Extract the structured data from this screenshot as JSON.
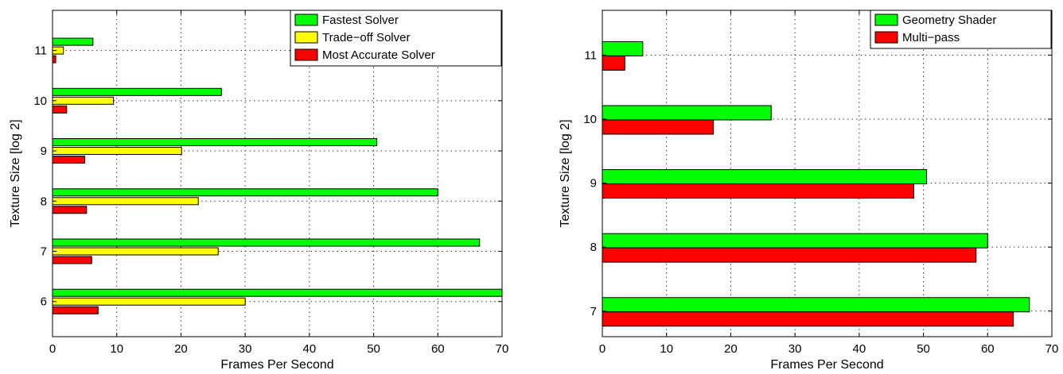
{
  "chart_data": [
    {
      "type": "bar",
      "orientation": "horizontal",
      "categories": [
        "6",
        "7",
        "8",
        "9",
        "10",
        "11"
      ],
      "series": [
        {
          "name": "Fastest Solver",
          "color": "#00ff00",
          "values": [
            70,
            66.5,
            60,
            50.5,
            26.3,
            6.3
          ]
        },
        {
          "name": "Trade−off Solver",
          "color": "#ffff00",
          "values": [
            30,
            25.8,
            22.7,
            20.1,
            9.5,
            1.7
          ]
        },
        {
          "name": "Most Accurate Solver",
          "color": "#ff0000",
          "values": [
            7.1,
            6.1,
            5.3,
            5,
            2.2,
            0.5
          ]
        }
      ],
      "xlabel": "Frames Per Second",
      "ylabel": "Texture Size [log 2]",
      "xlim": [
        0,
        70
      ],
      "ylim": [
        5.3,
        11.8
      ],
      "xticks": [
        0,
        10,
        20,
        30,
        40,
        50,
        60,
        70
      ],
      "yticks": [
        6,
        7,
        8,
        9,
        10,
        11
      ],
      "grid": true,
      "legend": "top-right"
    },
    {
      "type": "bar",
      "orientation": "horizontal",
      "categories": [
        "7",
        "8",
        "9",
        "10",
        "11"
      ],
      "series": [
        {
          "name": "Geometry Shader",
          "color": "#00ff00",
          "values": [
            66.5,
            60,
            50.5,
            26.3,
            6.3
          ]
        },
        {
          "name": "Multi−pass",
          "color": "#ff0000",
          "values": [
            64,
            58.2,
            48.5,
            17.3,
            3.5
          ]
        }
      ],
      "xlabel": "Frames Per Second",
      "ylabel": "Texture Size [log 2]",
      "xlim": [
        0,
        70
      ],
      "ylim": [
        6.6,
        11.7
      ],
      "xticks": [
        0,
        10,
        20,
        30,
        40,
        50,
        60,
        70
      ],
      "yticks": [
        7,
        8,
        9,
        10,
        11
      ],
      "grid": true,
      "legend": "top-right"
    }
  ]
}
